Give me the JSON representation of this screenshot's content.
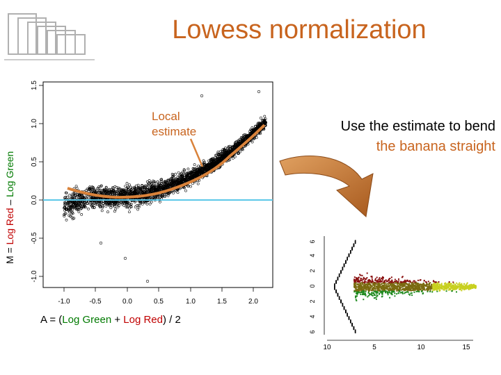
{
  "title": "Lowess normalization",
  "callout": {
    "line1": "Local",
    "line2": "estimate"
  },
  "note": {
    "line1": "Use the estimate to bend",
    "line2": "the banana straight"
  },
  "left_plot": {
    "y_axis_label": {
      "m": "M",
      "eq": " = ",
      "red": "Log Red",
      "minus": " – ",
      "green": "Log Green"
    },
    "x_axis_label": {
      "a": "A = (",
      "green": "Log Green",
      "plus": " + ",
      "red": "Log Red",
      "tail": ") / 2"
    },
    "x_ticks": [
      "-1.0",
      "-0.5",
      "0.0",
      "0.5",
      "1.0",
      "1.5",
      "2.0"
    ],
    "y_ticks": [
      "-1.0",
      "-0.5",
      "0.0",
      "0.5",
      "1.0",
      "1.5"
    ]
  },
  "right_plot": {
    "x_ticks": [
      "10",
      "5",
      "10",
      "15"
    ],
    "y_ticks": [
      "6",
      "4",
      "2",
      "0",
      "2",
      "4",
      "6"
    ]
  },
  "colors": {
    "title": "#c8641e",
    "curve": "#d9823a",
    "baseline": "#5bc8e8",
    "arrow": "#c8782e"
  }
}
